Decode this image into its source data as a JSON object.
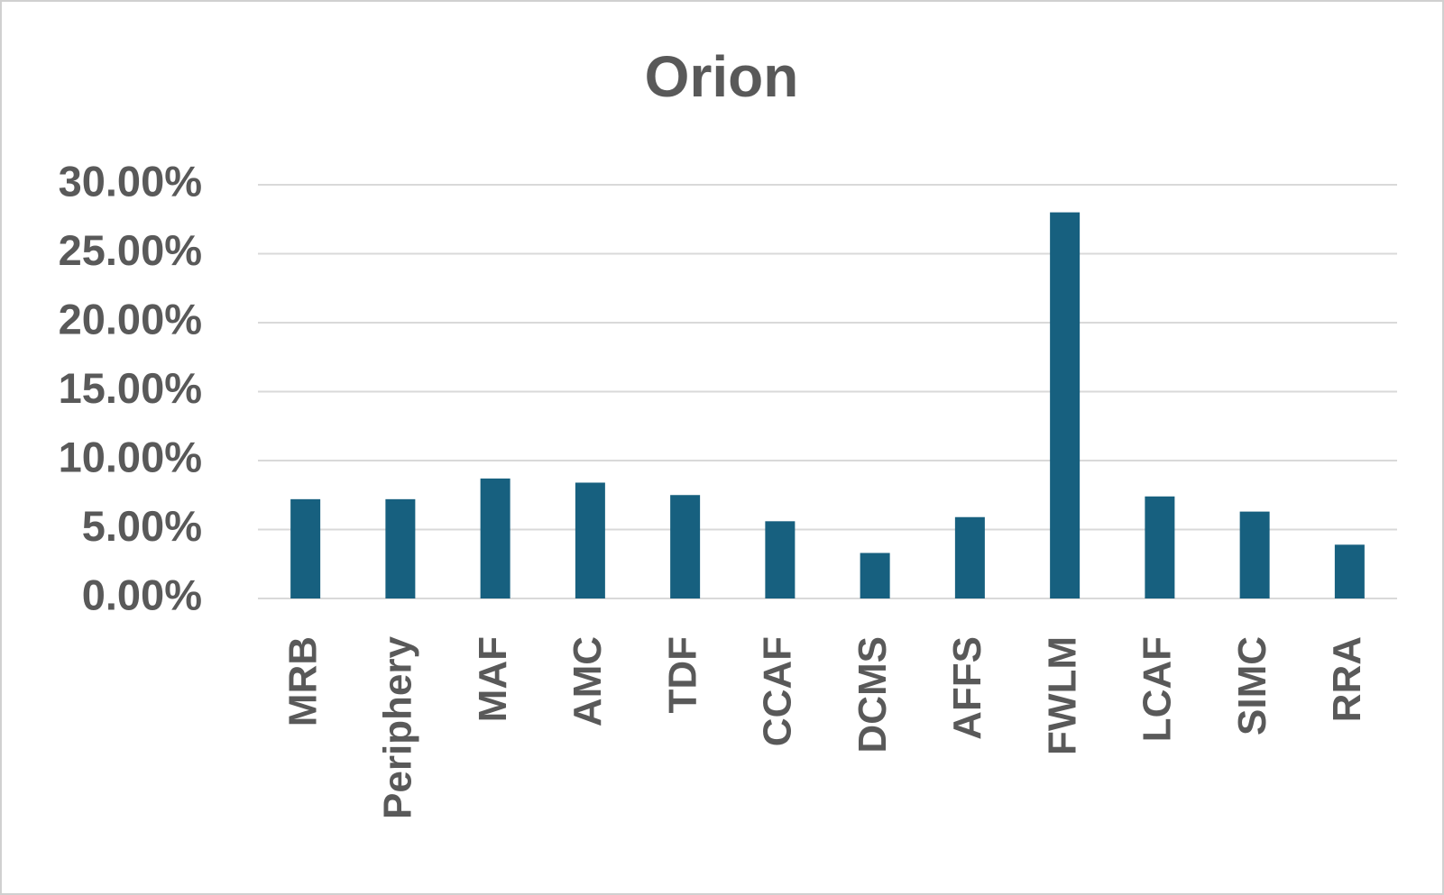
{
  "chart_data": {
    "type": "bar",
    "title": "Orion",
    "categories": [
      "MRB",
      "Periphery",
      "MAF",
      "AMC",
      "TDF",
      "CCAF",
      "DCMS",
      "AFFS",
      "FWLM",
      "LCAF",
      "SIMC",
      "RRA"
    ],
    "values": [
      7.2,
      7.2,
      8.7,
      8.4,
      7.5,
      5.6,
      3.3,
      5.9,
      28.0,
      7.4,
      6.3,
      3.9
    ],
    "color": "#17607f",
    "ylim": [
      0,
      30
    ],
    "yticks": [
      {
        "value": 0,
        "label": "0.00%"
      },
      {
        "value": 5,
        "label": "5.00%"
      },
      {
        "value": 10,
        "label": "10.00%"
      },
      {
        "value": 15,
        "label": "15.00%"
      },
      {
        "value": 20,
        "label": "20.00%"
      },
      {
        "value": 25,
        "label": "25.00%"
      },
      {
        "value": 30,
        "label": "30.00%"
      }
    ],
    "grid": true
  }
}
